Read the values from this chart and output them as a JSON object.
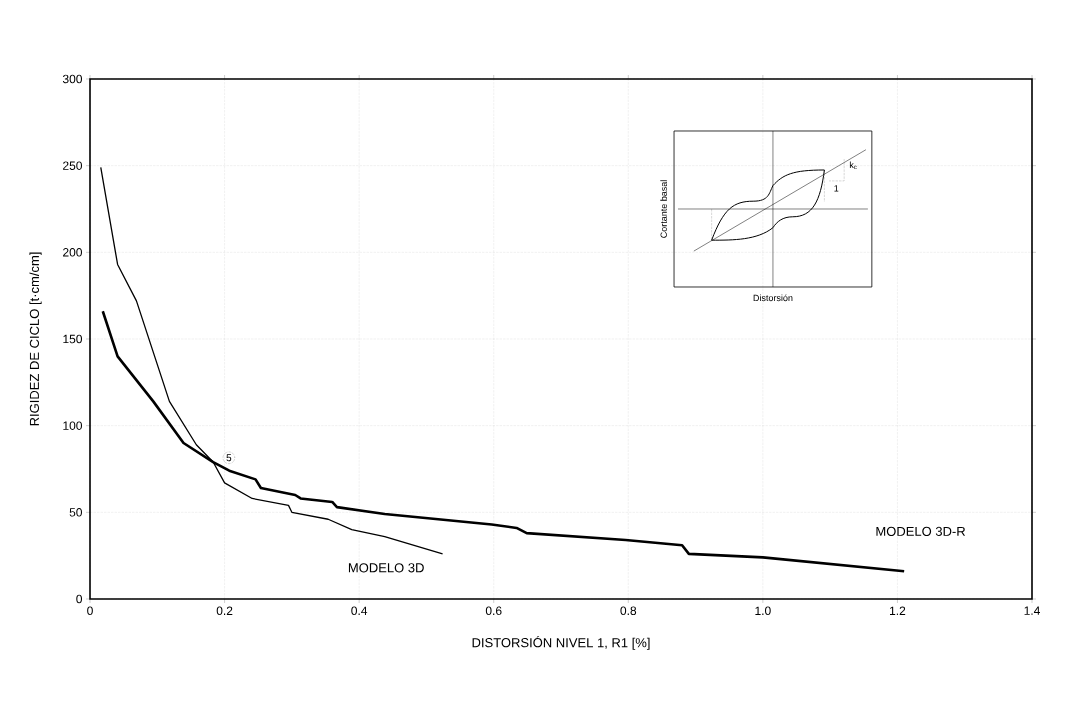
{
  "chart_data": {
    "type": "line",
    "xlabel": "DISTORSIÓN NIVEL 1, R1  [%]",
    "ylabel": "RIGIDEZ DE CICLO  [t·cm/cm]",
    "xlim": [
      0,
      1.4
    ],
    "ylim": [
      0,
      300
    ],
    "xticks": [
      0,
      0.2,
      0.4,
      0.6,
      0.8,
      {
        "value": 1.0,
        "label": "1.0"
      },
      1.2,
      1.4
    ],
    "yticks": [
      0,
      50,
      100,
      150,
      200,
      250,
      300
    ],
    "grid": true,
    "legend": false,
    "marker": "none",
    "line_style": "solid",
    "series": [
      {
        "name": "MODELO 3D",
        "color": "#000000",
        "x": [
          0.016,
          0.041,
          0.069,
          0.118,
          0.158,
          0.183,
          0.2,
          0.241,
          0.295,
          0.3,
          0.354,
          0.389,
          0.438,
          0.524
        ],
        "values": [
          249,
          193,
          172,
          114,
          89,
          79,
          67,
          58,
          54,
          50,
          46,
          40,
          36,
          26
        ]
      },
      {
        "name": "MODELO 3D-R",
        "color": "#000000",
        "x": [
          0.019,
          0.041,
          0.094,
          0.139,
          0.183,
          0.207,
          0.246,
          0.254,
          0.305,
          0.313,
          0.36,
          0.367,
          0.438,
          0.597,
          0.634,
          0.649,
          0.796,
          0.88,
          0.89,
          1.0,
          1.21
        ],
        "values": [
          166,
          140,
          114,
          90,
          79,
          74,
          69,
          64,
          60,
          58,
          56,
          53,
          49,
          43,
          41,
          38,
          34,
          31,
          26,
          24,
          16
        ]
      }
    ],
    "annotations": [
      {
        "text": "5",
        "x": 0.2,
        "y": 79
      },
      "Cortante basal",
      "Distorsión",
      "k$_{c}$",
      "1"
    ]
  }
}
